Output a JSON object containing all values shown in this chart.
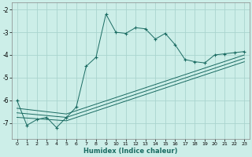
{
  "xlabel": "Humidex (Indice chaleur)",
  "bg_color": "#cceee8",
  "grid_color": "#aad4ce",
  "line_color": "#1a6b62",
  "xlim": [
    -0.5,
    23.5
  ],
  "ylim": [
    -7.7,
    -1.7
  ],
  "yticks": [
    -7,
    -6,
    -5,
    -4,
    -3,
    -2
  ],
  "xticks": [
    0,
    1,
    2,
    3,
    4,
    5,
    6,
    7,
    8,
    9,
    10,
    11,
    12,
    13,
    14,
    15,
    16,
    17,
    18,
    19,
    20,
    21,
    22,
    23
  ],
  "main_x": [
    0,
    1,
    2,
    3,
    4,
    5,
    6,
    7,
    8,
    9,
    10,
    11,
    12,
    13,
    14,
    15,
    16,
    17,
    18,
    19,
    20,
    21,
    22,
    23
  ],
  "main_y": [
    -6.0,
    -7.1,
    -6.85,
    -6.75,
    -7.2,
    -6.75,
    -6.3,
    -4.5,
    -4.1,
    -2.2,
    -3.0,
    -3.05,
    -2.8,
    -2.85,
    -3.3,
    -3.05,
    -3.55,
    -4.2,
    -4.3,
    -4.35,
    -4.0,
    -3.95,
    -3.9,
    -3.85
  ],
  "line2_x": [
    0,
    5,
    23
  ],
  "line2_y": [
    -6.35,
    -6.6,
    -4.0
  ],
  "line3_x": [
    0,
    5,
    23
  ],
  "line3_y": [
    -6.55,
    -6.75,
    -4.15
  ],
  "line4_x": [
    0,
    5,
    23
  ],
  "line4_y": [
    -6.75,
    -6.9,
    -4.3
  ]
}
